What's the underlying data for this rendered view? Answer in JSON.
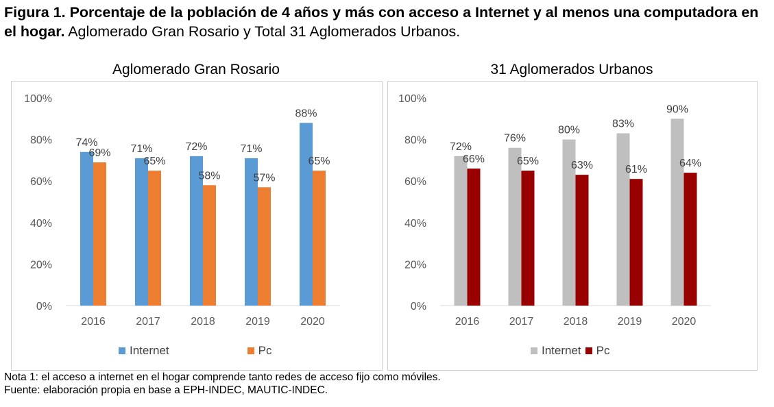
{
  "figure": {
    "title_bold": "Figura 1. Porcentaje de la población de 4 años y más con acceso a Internet y al menos una computadora en el hogar.",
    "title_rest": " Aglomerado Gran Rosario y Total 31 Aglomerados Urbanos."
  },
  "chart_data": [
    {
      "type": "bar",
      "title": "Aglomerado Gran Rosario",
      "categories": [
        "2016",
        "2017",
        "2018",
        "2019",
        "2020"
      ],
      "series": [
        {
          "name": "Internet",
          "values": [
            74,
            71,
            72,
            71,
            88
          ],
          "labels": [
            "74%",
            "71%",
            "72%",
            "71%",
            "88%"
          ],
          "color": "#5b9bd5"
        },
        {
          "name": "Pc",
          "values": [
            69,
            65,
            58,
            57,
            65
          ],
          "labels": [
            "69%",
            "65%",
            "58%",
            "57%",
            "65%"
          ],
          "color": "#ed7d31"
        }
      ],
      "ylim": [
        0,
        100
      ],
      "yticks": [
        "0%",
        "20%",
        "40%",
        "60%",
        "80%",
        "100%"
      ],
      "grid": false,
      "legend_position": "bottom"
    },
    {
      "type": "bar",
      "title": "31 Aglomerados Urbanos",
      "categories": [
        "2016",
        "2017",
        "2018",
        "2019",
        "2020"
      ],
      "series": [
        {
          "name": "Internet",
          "values": [
            72,
            76,
            80,
            83,
            90
          ],
          "labels": [
            "72%",
            "76%",
            "80%",
            "83%",
            "90%"
          ],
          "color": "#bfbfbf"
        },
        {
          "name": "Pc",
          "values": [
            66,
            65,
            63,
            61,
            64
          ],
          "labels": [
            "66%",
            "65%",
            "63%",
            "61%",
            "64%"
          ],
          "color": "#990000"
        }
      ],
      "ylim": [
        0,
        100
      ],
      "yticks": [
        "0%",
        "20%",
        "40%",
        "60%",
        "80%",
        "100%"
      ],
      "grid": false,
      "legend_position": "bottom"
    }
  ],
  "notes": {
    "nota": "Nota 1: el acceso a internet en el hogar comprende tanto redes de acceso fijo como móviles.",
    "fuente": "Fuente: elaboración propia en base a EPH-INDEC, MAUTIC-INDEC."
  }
}
